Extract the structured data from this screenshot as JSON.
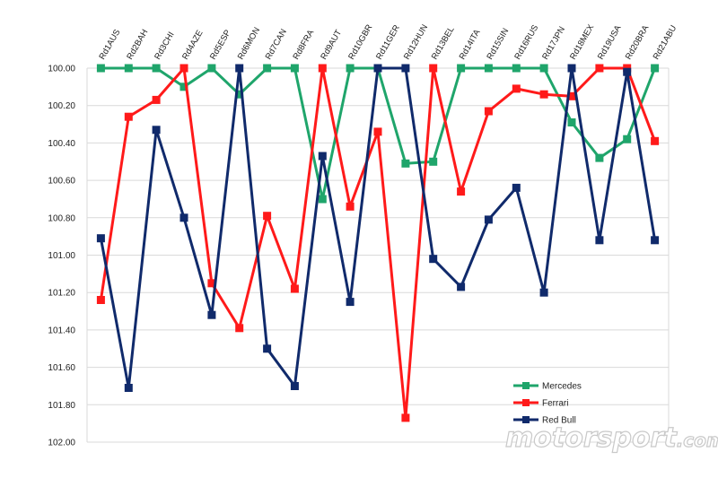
{
  "chart_data": {
    "type": "line",
    "categories": [
      "Rd1AUS",
      "Rd2BAH",
      "Rd3CHI",
      "Rd4AZE",
      "Rd5ESP",
      "Rd6MON",
      "Rd7CAN",
      "Rd8FRA",
      "Rd9AUT",
      "Rd10GBR",
      "Rd11GER",
      "Rd12HUN",
      "Rd13BEL",
      "Rd14ITA",
      "Rd15SIN",
      "Rd16RUS",
      "Rd17JPN",
      "Rd18MEX",
      "Rd19USA",
      "Rd20BRA",
      "Rd21ABU"
    ],
    "series": [
      {
        "name": "Mercedes",
        "color": "#1fa56b",
        "values": [
          100.0,
          100.0,
          100.0,
          100.1,
          100.0,
          100.14,
          100.0,
          100.0,
          100.7,
          100.0,
          100.0,
          100.51,
          100.5,
          100.0,
          100.0,
          100.0,
          100.0,
          100.29,
          100.48,
          100.38,
          100.0
        ]
      },
      {
        "name": "Ferrari",
        "color": "#ff1a1a",
        "values": [
          101.24,
          100.26,
          100.17,
          100.0,
          101.15,
          101.39,
          100.79,
          101.18,
          100.0,
          100.74,
          100.34,
          101.87,
          100.0,
          100.66,
          100.23,
          100.11,
          100.14,
          100.15,
          100.0,
          100.0,
          100.39
        ]
      },
      {
        "name": "Red Bull",
        "color": "#102a6b",
        "values": [
          100.91,
          101.71,
          100.33,
          100.8,
          101.32,
          100.0,
          101.5,
          101.7,
          100.47,
          101.25,
          100.0,
          100.0,
          101.02,
          101.17,
          100.81,
          100.64,
          101.2,
          100.0,
          100.92,
          100.02,
          100.92
        ]
      }
    ],
    "yticks": [
      "100.00",
      "100.20",
      "100.40",
      "100.60",
      "100.80",
      "101.00",
      "101.20",
      "101.40",
      "101.60",
      "101.80",
      "102.00"
    ],
    "ylim": [
      100,
      102
    ],
    "y_inverted": true,
    "grid": true,
    "legend": "bottom-right",
    "title": "",
    "xlabel": "",
    "ylabel": ""
  },
  "watermark": {
    "text": "motorsport",
    "suffix": ".com"
  }
}
